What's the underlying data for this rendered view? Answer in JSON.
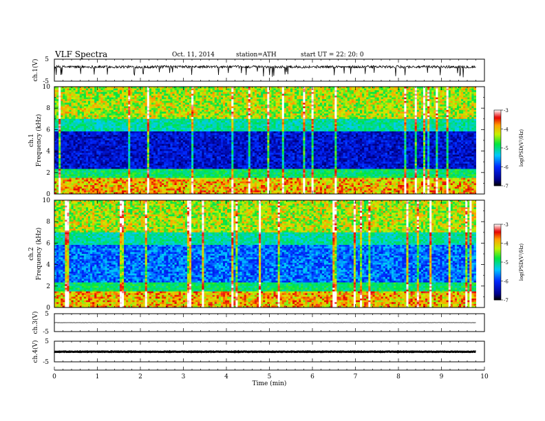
{
  "header": {
    "title": "VLF Spectra",
    "date": "Oct. 11, 2014",
    "station": "station=ATH",
    "start_ut": "start UT =  22: 20: 0"
  },
  "chart_data": [
    {
      "type": "line",
      "id": "ch1-waveform",
      "ylabel": "ch.1(V)",
      "ylim": [
        -5,
        5
      ],
      "yticks": [
        "5",
        "-5"
      ],
      "xlim": [
        0,
        10
      ],
      "data_end_min": 9.8,
      "baseline_v": 1.5,
      "noise_amp_v": 1.2
    },
    {
      "type": "heatmap",
      "id": "ch1-spectrogram",
      "ylabel": "ch.1  Frequency (kHz)",
      "ylim": [
        0,
        10
      ],
      "yticks": [
        "0",
        "2",
        "4",
        "6",
        "8",
        "10"
      ],
      "xlim": [
        0,
        10
      ],
      "data_end_min": 9.8,
      "colorbar": {
        "label": "log(PSD(V²/Hz)",
        "range": [
          -7,
          -3
        ],
        "ticks": [
          "-3",
          "-4",
          "-5",
          "-6",
          "-7"
        ]
      }
    },
    {
      "type": "heatmap",
      "id": "ch2-spectrogram",
      "ylabel": "ch.2  Frequency (kHz)",
      "ylim": [
        0,
        10
      ],
      "yticks": [
        "0",
        "2",
        "4",
        "6",
        "8",
        "10"
      ],
      "xlim": [
        0,
        10
      ],
      "data_end_min": 9.8,
      "colorbar": {
        "label": "log(PSD(V²/Hz)",
        "range": [
          -7,
          -3
        ],
        "ticks": [
          "-3",
          "-4",
          "-5",
          "-6",
          "-7"
        ]
      }
    },
    {
      "type": "line",
      "id": "ch3-waveform",
      "ylabel": "ch.3(V)",
      "ylim": [
        -5,
        5
      ],
      "yticks": [
        "5",
        "-5"
      ],
      "xlim": [
        0,
        10
      ],
      "data_end_min": 9.8,
      "baseline_v": 0.0,
      "noise_amp_v": 0.1
    },
    {
      "type": "line",
      "id": "ch4-waveform",
      "ylabel": "ch.4(V)",
      "ylim": [
        -5,
        5
      ],
      "yticks": [
        "5",
        "-5"
      ],
      "xlim": [
        0,
        10
      ],
      "data_end_min": 9.8,
      "baseline_v": -0.1,
      "noise_amp_v": 0.25
    }
  ],
  "xaxis": {
    "label": "Time (min)",
    "ticks": [
      "0",
      "1",
      "2",
      "3",
      "4",
      "5",
      "6",
      "7",
      "8",
      "9",
      "10"
    ]
  }
}
